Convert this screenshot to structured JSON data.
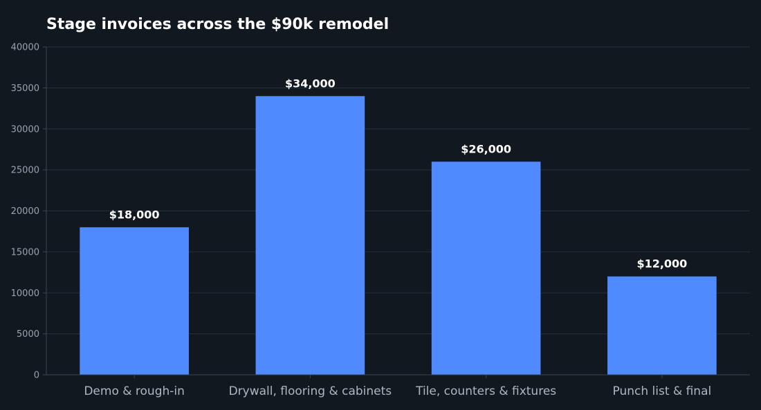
{
  "chart_data": {
    "type": "bar",
    "title": "Stage invoices across the $90k remodel",
    "xlabel": "",
    "ylabel": "",
    "categories": [
      "Demo & rough-in",
      "Drywall, flooring & cabinets",
      "Tile, counters & fixtures",
      "Punch list & final"
    ],
    "values": [
      18000,
      34000,
      26000,
      12000
    ],
    "data_labels": [
      "$18,000",
      "$34,000",
      "$26,000",
      "$12,000"
    ],
    "ylim": [
      0,
      40000
    ],
    "yticks": [
      0,
      5000,
      10000,
      15000,
      20000,
      25000,
      30000,
      35000,
      40000
    ],
    "grid": true,
    "legend": "none"
  },
  "colors": {
    "background": "#121820",
    "bar": "#4f8bff",
    "grid": "#25303a",
    "axis": "#3a4550",
    "title": "#ffffff",
    "tick_label": "#9aa3ad",
    "category_label": "#aeb6bf",
    "data_label": "#ffffff"
  }
}
